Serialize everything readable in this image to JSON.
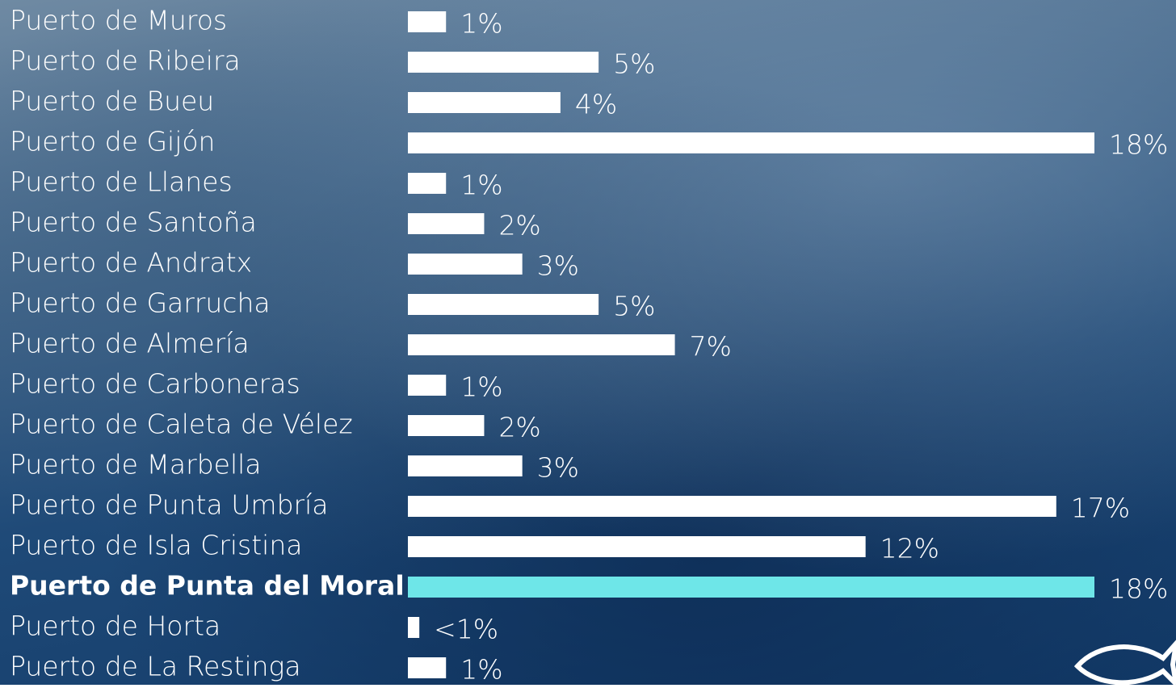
{
  "chart_data": {
    "type": "bar",
    "orientation": "horizontal",
    "categories": [
      "Puerto de Muros",
      "Puerto de Ribeira",
      "Puerto de Bueu",
      "Puerto de Gijón",
      "Puerto de Llanes",
      "Puerto de Santoña",
      "Puerto de Andratx",
      "Puerto de Garrucha",
      "Puerto de Almería",
      "Puerto de Carboneras",
      "Puerto de Caleta de Vélez",
      "Puerto de Marbella",
      "Puerto de Punta Umbría",
      "Puerto de Isla Cristina",
      "Puerto de Punta del Moral",
      "Puerto de Horta",
      "Puerto de La Restinga"
    ],
    "values": [
      1,
      5,
      4,
      18,
      1,
      2,
      3,
      5,
      7,
      1,
      2,
      3,
      17,
      12,
      18,
      0.3,
      1
    ],
    "value_labels": [
      "1%",
      "5%",
      "4%",
      "18%",
      "1%",
      "2%",
      "3%",
      "5%",
      "7%",
      "1%",
      "2%",
      "3%",
      "17%",
      "12%",
      "18%",
      "<1%",
      "1%"
    ],
    "color": "#ffffff",
    "colors": [
      "#ffffff",
      "#ffffff",
      "#ffffff",
      "#ffffff",
      "#ffffff",
      "#ffffff",
      "#ffffff",
      "#ffffff",
      "#ffffff",
      "#ffffff",
      "#ffffff",
      "#ffffff",
      "#ffffff",
      "#ffffff",
      "#6ee6e8",
      "#ffffff",
      "#ffffff"
    ]
  }
}
